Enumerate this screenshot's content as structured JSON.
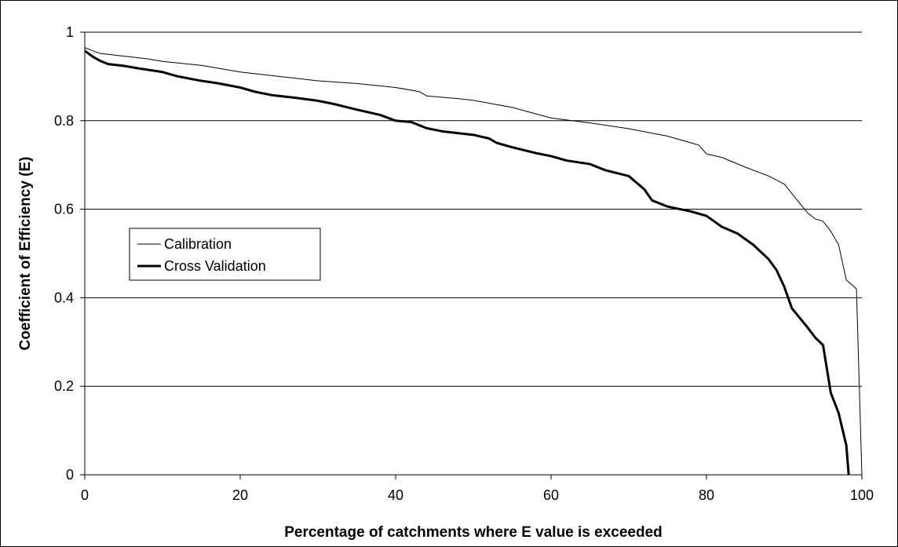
{
  "chart_data": {
    "type": "line",
    "x_label": "Percentage of catchments where E value is exceeded",
    "y_label": "Coefficient of Efficiency (E)",
    "xlim": [
      0,
      100
    ],
    "xticks": [
      0,
      20,
      40,
      60,
      80,
      100
    ],
    "ylim": [
      0,
      1
    ],
    "yticks": [
      0,
      0.2,
      0.4,
      0.6,
      0.8,
      1
    ],
    "grid": true,
    "legend": "left",
    "series": [
      {
        "name": "Calibration",
        "color": "#000000",
        "width": 1,
        "x": [
          0,
          1,
          2,
          5,
          8,
          10,
          15,
          20,
          25,
          30,
          35,
          40,
          43,
          44,
          48,
          50,
          55,
          60,
          65,
          70,
          75,
          78,
          79,
          80,
          82,
          85,
          88,
          90,
          91,
          93,
          94,
          95,
          96,
          97,
          98,
          99,
          99.3,
          100
        ],
        "values": [
          0.965,
          0.958,
          0.952,
          0.946,
          0.94,
          0.934,
          0.925,
          0.91,
          0.9,
          0.89,
          0.884,
          0.875,
          0.866,
          0.856,
          0.85,
          0.846,
          0.83,
          0.806,
          0.795,
          0.782,
          0.765,
          0.75,
          0.745,
          0.725,
          0.717,
          0.695,
          0.675,
          0.657,
          0.635,
          0.592,
          0.578,
          0.573,
          0.55,
          0.52,
          0.44,
          0.425,
          0.42,
          0
        ]
      },
      {
        "name": "Cross Validation",
        "color": "#000000",
        "width": 3,
        "x": [
          0,
          1,
          2,
          3,
          5,
          7,
          10,
          12,
          15,
          17,
          20,
          22,
          24,
          27,
          30,
          32,
          35,
          38,
          40,
          42,
          44,
          46,
          50,
          52,
          53,
          55,
          58,
          60,
          62,
          65,
          67,
          70,
          71,
          72,
          73,
          75,
          78,
          80,
          82,
          84,
          86,
          88,
          89,
          90,
          91,
          93,
          94,
          95,
          96,
          97,
          98,
          98.3
        ],
        "values": [
          0.958,
          0.945,
          0.935,
          0.928,
          0.924,
          0.918,
          0.91,
          0.9,
          0.89,
          0.885,
          0.875,
          0.865,
          0.858,
          0.852,
          0.845,
          0.838,
          0.825,
          0.813,
          0.8,
          0.797,
          0.783,
          0.776,
          0.768,
          0.76,
          0.75,
          0.74,
          0.727,
          0.72,
          0.71,
          0.702,
          0.688,
          0.675,
          0.66,
          0.645,
          0.62,
          0.606,
          0.595,
          0.585,
          0.56,
          0.545,
          0.52,
          0.487,
          0.463,
          0.425,
          0.376,
          0.333,
          0.31,
          0.293,
          0.185,
          0.14,
          0.066,
          0
        ]
      }
    ]
  }
}
